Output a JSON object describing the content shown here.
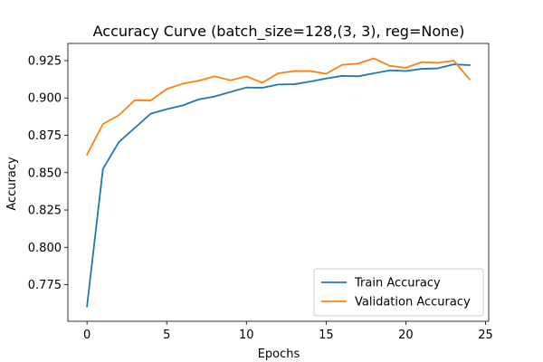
{
  "chart_data": {
    "type": "line",
    "title": "Accuracy Curve (batch_size=128,(3, 3), reg=None)",
    "xlabel": "Epochs",
    "ylabel": "Accuracy",
    "xlim": [
      -1.2,
      25.2
    ],
    "ylim": [
      0.7505,
      0.9365
    ],
    "xticks": [
      0,
      5,
      10,
      15,
      20,
      25
    ],
    "xtick_labels": [
      "0",
      "5",
      "10",
      "15",
      "20",
      "25"
    ],
    "yticks": [
      0.775,
      0.8,
      0.825,
      0.85,
      0.875,
      0.9,
      0.925
    ],
    "ytick_labels": [
      "0.775",
      "0.800",
      "0.825",
      "0.850",
      "0.875",
      "0.900",
      "0.925"
    ],
    "grid": false,
    "legend": "lower-right",
    "x": [
      0,
      1,
      2,
      3,
      4,
      5,
      6,
      7,
      8,
      9,
      10,
      11,
      12,
      13,
      14,
      15,
      16,
      17,
      18,
      19,
      20,
      21,
      22,
      23,
      24
    ],
    "series": [
      {
        "name": "Train Accuracy",
        "color": "#1f77b4",
        "values": [
          0.7605,
          0.8525,
          0.8705,
          0.88,
          0.8895,
          0.8925,
          0.895,
          0.899,
          0.901,
          0.904,
          0.907,
          0.9068,
          0.909,
          0.9092,
          0.911,
          0.913,
          0.9148,
          0.9145,
          0.9165,
          0.9185,
          0.918,
          0.9195,
          0.9198,
          0.9225,
          0.922
        ]
      },
      {
        "name": "Validation Accuracy",
        "color": "#ff7f0e",
        "values": [
          0.862,
          0.8825,
          0.8885,
          0.8985,
          0.8983,
          0.906,
          0.9095,
          0.9115,
          0.9145,
          0.9118,
          0.9145,
          0.9102,
          0.9165,
          0.918,
          0.918,
          0.9162,
          0.9222,
          0.923,
          0.9265,
          0.9215,
          0.9202,
          0.924,
          0.9235,
          0.925,
          0.9125
        ]
      }
    ]
  }
}
